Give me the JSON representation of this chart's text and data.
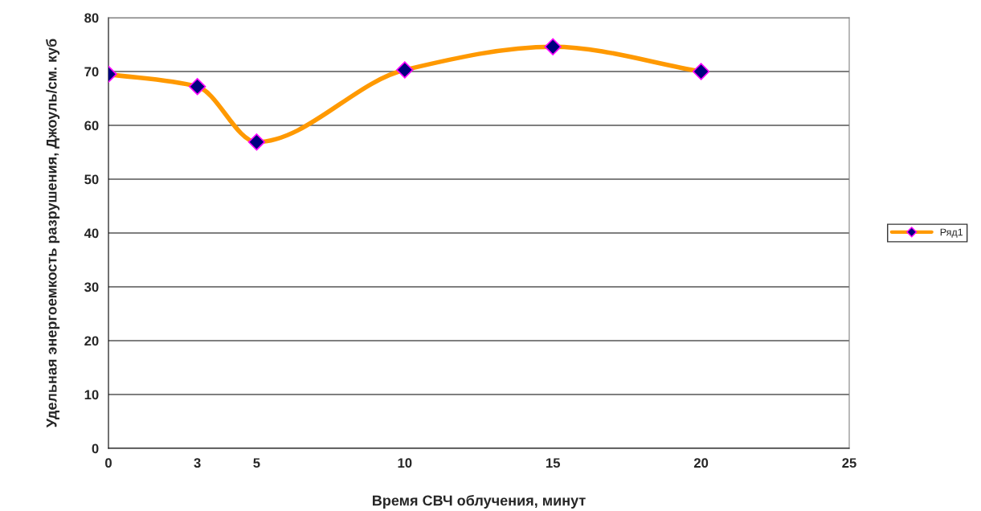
{
  "chart_data": {
    "type": "line",
    "xlabel": "Время СВЧ облучения, минут",
    "ylabel": "Удельная энергоемкость разрушения, Джоуль/см. куб",
    "x": [
      0,
      3,
      5,
      10,
      15,
      20
    ],
    "series": [
      {
        "name": "Ряд1",
        "color": "#ff9900",
        "values": [
          69.5,
          67.2,
          56.9,
          70.3,
          74.6,
          70.0
        ]
      }
    ],
    "xlim": [
      0,
      25
    ],
    "xticks": [
      0,
      3,
      5,
      10,
      15,
      20,
      25
    ],
    "ylim": [
      0,
      80
    ],
    "yticks": [
      0,
      10,
      20,
      30,
      40,
      50,
      60,
      70,
      80
    ],
    "grid": "y",
    "legend": "right",
    "marker": "diamond",
    "line_style": "solid"
  }
}
